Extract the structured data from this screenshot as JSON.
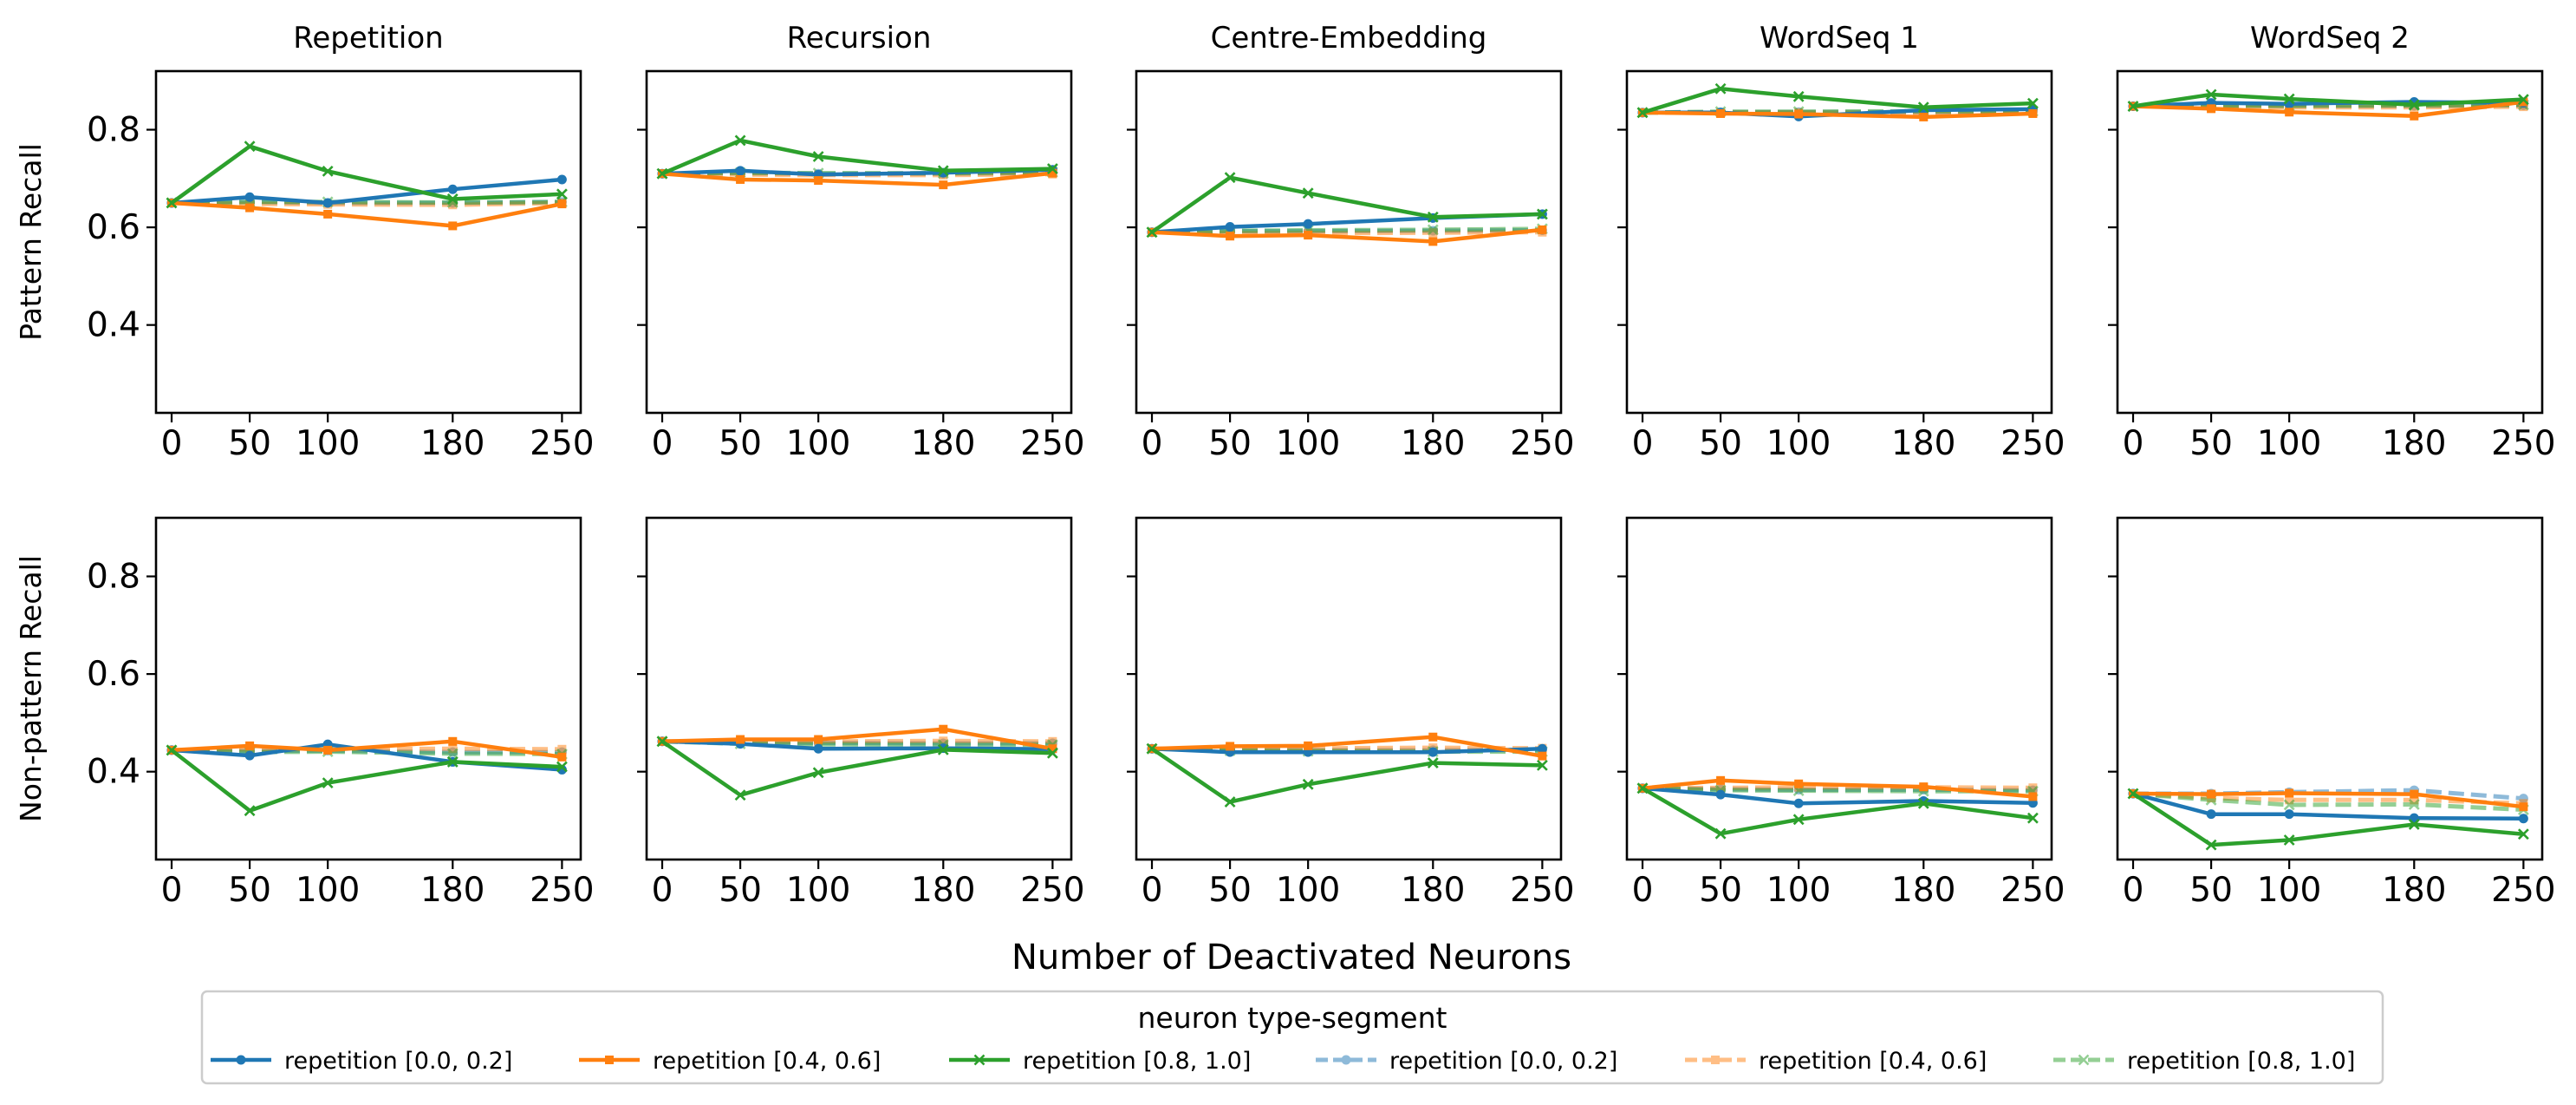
{
  "figure": {
    "xlabel": "Number of Deactivated Neurons",
    "legend_title": "neuron type-segment",
    "legend_entries": [
      {
        "label": "repetition [0.0, 0.2]",
        "color": "#1f77b4",
        "marker": "circle",
        "style": "solid"
      },
      {
        "label": "repetition [0.4, 0.6]",
        "color": "#ff7f0e",
        "marker": "square",
        "style": "solid"
      },
      {
        "label": "repetition [0.8, 1.0]",
        "color": "#2ca02c",
        "marker": "x",
        "style": "solid"
      },
      {
        "label": "repetition [0.0, 0.2]",
        "color": "#1f77b4",
        "marker": "circle",
        "style": "dashed-faded"
      },
      {
        "label": "repetition [0.4, 0.6]",
        "color": "#ff7f0e",
        "marker": "square",
        "style": "dashed-faded"
      },
      {
        "label": "repetition [0.8, 1.0]",
        "color": "#2ca02c",
        "marker": "x",
        "style": "dashed-faded"
      }
    ]
  },
  "chart_data": {
    "type": "line",
    "columns": [
      "Repetition",
      "Recursion",
      "Centre-Embedding",
      "WordSeq 1",
      "WordSeq 2"
    ],
    "rows": [
      "Pattern Recall",
      "Non-pattern Recall"
    ],
    "x": [
      0,
      50,
      100,
      180,
      250
    ],
    "x_ticks": [
      "0",
      "50",
      "100",
      "180",
      "250"
    ],
    "xlim": [
      -10,
      262
    ],
    "ylim": [
      0.22,
      0.92
    ],
    "y_ticks": [
      "0.4",
      "0.6",
      "0.8"
    ],
    "panels": [
      {
        "row": 0,
        "col": 0,
        "series": [
          {
            "name": "repetition [0.0, 0.2]",
            "values": [
              0.65,
              0.662,
              0.65,
              0.678,
              0.698
            ]
          },
          {
            "name": "repetition [0.4, 0.6]",
            "values": [
              0.65,
              0.64,
              0.627,
              0.603,
              0.648
            ]
          },
          {
            "name": "repetition [0.8, 1.0]",
            "values": [
              0.65,
              0.766,
              0.715,
              0.658,
              0.668
            ]
          },
          {
            "name": "repetition [0.0, 0.2]",
            "values": [
              0.65,
              0.652,
              0.65,
              0.65,
              0.652
            ]
          },
          {
            "name": "repetition [0.4, 0.6]",
            "values": [
              0.65,
              0.648,
              0.647,
              0.646,
              0.65
            ]
          },
          {
            "name": "repetition [0.8, 1.0]",
            "values": [
              0.65,
              0.652,
              0.652,
              0.651,
              0.652
            ]
          }
        ]
      },
      {
        "row": 0,
        "col": 1,
        "series": [
          {
            "name": "repetition [0.0, 0.2]",
            "values": [
              0.71,
              0.716,
              0.708,
              0.712,
              0.718
            ]
          },
          {
            "name": "repetition [0.4, 0.6]",
            "values": [
              0.71,
              0.698,
              0.696,
              0.687,
              0.711
            ]
          },
          {
            "name": "repetition [0.8, 1.0]",
            "values": [
              0.71,
              0.778,
              0.745,
              0.716,
              0.72
            ]
          },
          {
            "name": "repetition [0.0, 0.2]",
            "values": [
              0.71,
              0.711,
              0.71,
              0.71,
              0.712
            ]
          },
          {
            "name": "repetition [0.4, 0.6]",
            "values": [
              0.71,
              0.708,
              0.707,
              0.707,
              0.709
            ]
          },
          {
            "name": "repetition [0.8, 1.0]",
            "values": [
              0.71,
              0.712,
              0.711,
              0.711,
              0.713
            ]
          }
        ]
      },
      {
        "row": 0,
        "col": 2,
        "series": [
          {
            "name": "repetition [0.0, 0.2]",
            "values": [
              0.59,
              0.601,
              0.607,
              0.619,
              0.627
            ]
          },
          {
            "name": "repetition [0.4, 0.6]",
            "values": [
              0.59,
              0.582,
              0.584,
              0.571,
              0.595
            ]
          },
          {
            "name": "repetition [0.8, 1.0]",
            "values": [
              0.59,
              0.702,
              0.67,
              0.621,
              0.627
            ]
          },
          {
            "name": "repetition [0.0, 0.2]",
            "values": [
              0.59,
              0.592,
              0.592,
              0.593,
              0.594
            ]
          },
          {
            "name": "repetition [0.4, 0.6]",
            "values": [
              0.59,
              0.588,
              0.588,
              0.589,
              0.59
            ]
          },
          {
            "name": "repetition [0.8, 1.0]",
            "values": [
              0.59,
              0.593,
              0.594,
              0.595,
              0.597
            ]
          }
        ]
      },
      {
        "row": 0,
        "col": 3,
        "series": [
          {
            "name": "repetition [0.0, 0.2]",
            "values": [
              0.835,
              0.835,
              0.827,
              0.84,
              0.842
            ]
          },
          {
            "name": "repetition [0.4, 0.6]",
            "values": [
              0.835,
              0.833,
              0.832,
              0.826,
              0.833
            ]
          },
          {
            "name": "repetition [0.8, 1.0]",
            "values": [
              0.835,
              0.884,
              0.868,
              0.846,
              0.854
            ]
          },
          {
            "name": "repetition [0.0, 0.2]",
            "values": [
              0.835,
              0.836,
              0.836,
              0.836,
              0.837
            ]
          },
          {
            "name": "repetition [0.4, 0.6]",
            "values": [
              0.835,
              0.835,
              0.835,
              0.834,
              0.835
            ]
          },
          {
            "name": "repetition [0.8, 1.0]",
            "values": [
              0.835,
              0.837,
              0.837,
              0.838,
              0.838
            ]
          }
        ]
      },
      {
        "row": 0,
        "col": 4,
        "series": [
          {
            "name": "repetition [0.0, 0.2]",
            "values": [
              0.848,
              0.855,
              0.853,
              0.857,
              0.855
            ]
          },
          {
            "name": "repetition [0.4, 0.6]",
            "values": [
              0.848,
              0.843,
              0.836,
              0.828,
              0.857
            ]
          },
          {
            "name": "repetition [0.8, 1.0]",
            "values": [
              0.848,
              0.872,
              0.863,
              0.851,
              0.862
            ]
          },
          {
            "name": "repetition [0.0, 0.2]",
            "values": [
              0.848,
              0.849,
              0.849,
              0.849,
              0.85
            ]
          },
          {
            "name": "repetition [0.4, 0.6]",
            "values": [
              0.848,
              0.847,
              0.846,
              0.846,
              0.847
            ]
          },
          {
            "name": "repetition [0.8, 1.0]",
            "values": [
              0.848,
              0.85,
              0.849,
              0.85,
              0.851
            ]
          }
        ]
      },
      {
        "row": 1,
        "col": 0,
        "series": [
          {
            "name": "repetition [0.0, 0.2]",
            "values": [
              0.444,
              0.433,
              0.456,
              0.42,
              0.404
            ]
          },
          {
            "name": "repetition [0.4, 0.6]",
            "values": [
              0.444,
              0.453,
              0.444,
              0.462,
              0.43
            ]
          },
          {
            "name": "repetition [0.8, 1.0]",
            "values": [
              0.444,
              0.32,
              0.377,
              0.42,
              0.41
            ]
          },
          {
            "name": "repetition [0.0, 0.2]",
            "values": [
              0.444,
              0.442,
              0.443,
              0.44,
              0.44
            ]
          },
          {
            "name": "repetition [0.4, 0.6]",
            "values": [
              0.444,
              0.446,
              0.446,
              0.447,
              0.446
            ]
          },
          {
            "name": "repetition [0.8, 1.0]",
            "values": [
              0.444,
              0.44,
              0.441,
              0.437,
              0.436
            ]
          }
        ]
      },
      {
        "row": 1,
        "col": 1,
        "series": [
          {
            "name": "repetition [0.0, 0.2]",
            "values": [
              0.462,
              0.457,
              0.447,
              0.448,
              0.446
            ]
          },
          {
            "name": "repetition [0.4, 0.6]",
            "values": [
              0.462,
              0.466,
              0.466,
              0.487,
              0.447
            ]
          },
          {
            "name": "repetition [0.8, 1.0]",
            "values": [
              0.462,
              0.352,
              0.398,
              0.445,
              0.438
            ]
          },
          {
            "name": "repetition [0.0, 0.2]",
            "values": [
              0.462,
              0.46,
              0.459,
              0.458,
              0.458
            ]
          },
          {
            "name": "repetition [0.4, 0.6]",
            "values": [
              0.462,
              0.462,
              0.462,
              0.463,
              0.462
            ]
          },
          {
            "name": "repetition [0.8, 1.0]",
            "values": [
              0.462,
              0.457,
              0.456,
              0.455,
              0.455
            ]
          }
        ]
      },
      {
        "row": 1,
        "col": 2,
        "series": [
          {
            "name": "repetition [0.0, 0.2]",
            "values": [
              0.447,
              0.44,
              0.44,
              0.44,
              0.447
            ]
          },
          {
            "name": "repetition [0.4, 0.6]",
            "values": [
              0.447,
              0.452,
              0.453,
              0.471,
              0.432
            ]
          },
          {
            "name": "repetition [0.8, 1.0]",
            "values": [
              0.447,
              0.338,
              0.374,
              0.418,
              0.413
            ]
          },
          {
            "name": "repetition [0.0, 0.2]",
            "values": [
              0.447,
              0.445,
              0.444,
              0.444,
              0.444
            ]
          },
          {
            "name": "repetition [0.4, 0.6]",
            "values": [
              0.447,
              0.448,
              0.448,
              0.449,
              0.448
            ]
          },
          {
            "name": "repetition [0.8, 1.0]",
            "values": [
              0.447,
              0.443,
              0.442,
              0.441,
              0.441
            ]
          }
        ]
      },
      {
        "row": 1,
        "col": 3,
        "series": [
          {
            "name": "repetition [0.0, 0.2]",
            "values": [
              0.366,
              0.353,
              0.335,
              0.34,
              0.336
            ]
          },
          {
            "name": "repetition [0.4, 0.6]",
            "values": [
              0.366,
              0.382,
              0.375,
              0.369,
              0.349
            ]
          },
          {
            "name": "repetition [0.8, 1.0]",
            "values": [
              0.366,
              0.273,
              0.302,
              0.335,
              0.305
            ]
          },
          {
            "name": "repetition [0.0, 0.2]",
            "values": [
              0.366,
              0.364,
              0.363,
              0.363,
              0.362
            ]
          },
          {
            "name": "repetition [0.4, 0.6]",
            "values": [
              0.366,
              0.367,
              0.368,
              0.368,
              0.367
            ]
          },
          {
            "name": "repetition [0.8, 1.0]",
            "values": [
              0.366,
              0.362,
              0.361,
              0.36,
              0.36
            ]
          }
        ]
      },
      {
        "row": 1,
        "col": 4,
        "series": [
          {
            "name": "repetition [0.0, 0.2]",
            "values": [
              0.355,
              0.313,
              0.313,
              0.305,
              0.304
            ]
          },
          {
            "name": "repetition [0.4, 0.6]",
            "values": [
              0.355,
              0.354,
              0.356,
              0.354,
              0.328
            ]
          },
          {
            "name": "repetition [0.8, 1.0]",
            "values": [
              0.355,
              0.25,
              0.26,
              0.292,
              0.272
            ]
          },
          {
            "name": "repetition [0.0, 0.2]",
            "values": [
              0.355,
              0.355,
              0.358,
              0.362,
              0.345
            ]
          },
          {
            "name": "repetition [0.4, 0.6]",
            "values": [
              0.355,
              0.346,
              0.342,
              0.342,
              0.335
            ]
          },
          {
            "name": "repetition [0.8, 1.0]",
            "values": [
              0.355,
              0.342,
              0.332,
              0.333,
              0.322
            ]
          }
        ]
      }
    ]
  }
}
